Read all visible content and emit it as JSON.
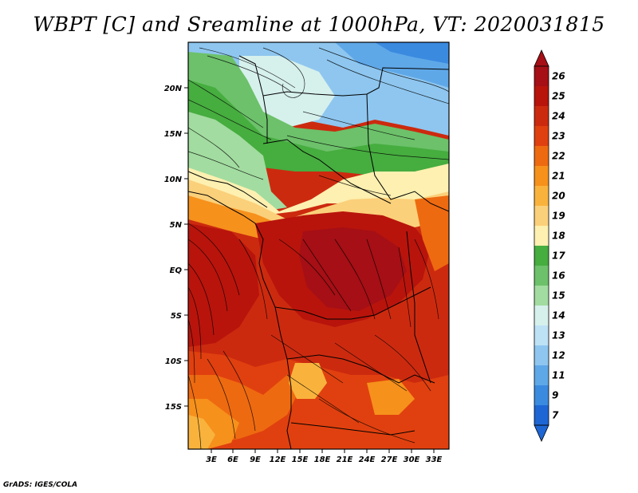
{
  "title": "WBPT [C] and Sreamline at 1000hPa, VT: 2020031815",
  "footer": "GrADS: IGES/COLA",
  "map": {
    "lat_labels": [
      "20N",
      "15N",
      "10N",
      "5N",
      "EQ",
      "5S",
      "10S",
      "15S"
    ],
    "lon_labels": [
      "3E",
      "6E",
      "9E",
      "12E",
      "15E",
      "18E",
      "21E",
      "24E",
      "27E",
      "30E",
      "33E"
    ]
  },
  "colorbar": {
    "levels": [
      "26",
      "25",
      "24",
      "23",
      "22",
      "21",
      "20",
      "19",
      "18",
      "17",
      "16",
      "15",
      "14",
      "13",
      "12",
      "11",
      "9",
      "7"
    ],
    "colors": [
      "#a50f15",
      "#b8140c",
      "#cc2a0f",
      "#e0400f",
      "#ee6a10",
      "#f6911c",
      "#f9b33d",
      "#fbd07a",
      "#fdf0b0",
      "#46ad3f",
      "#6cc16a",
      "#a2dca0",
      "#d6f0ec",
      "#bde1f5",
      "#8ec6ef",
      "#5fa8e8",
      "#3a8ae0",
      "#1e66d4"
    ]
  }
}
